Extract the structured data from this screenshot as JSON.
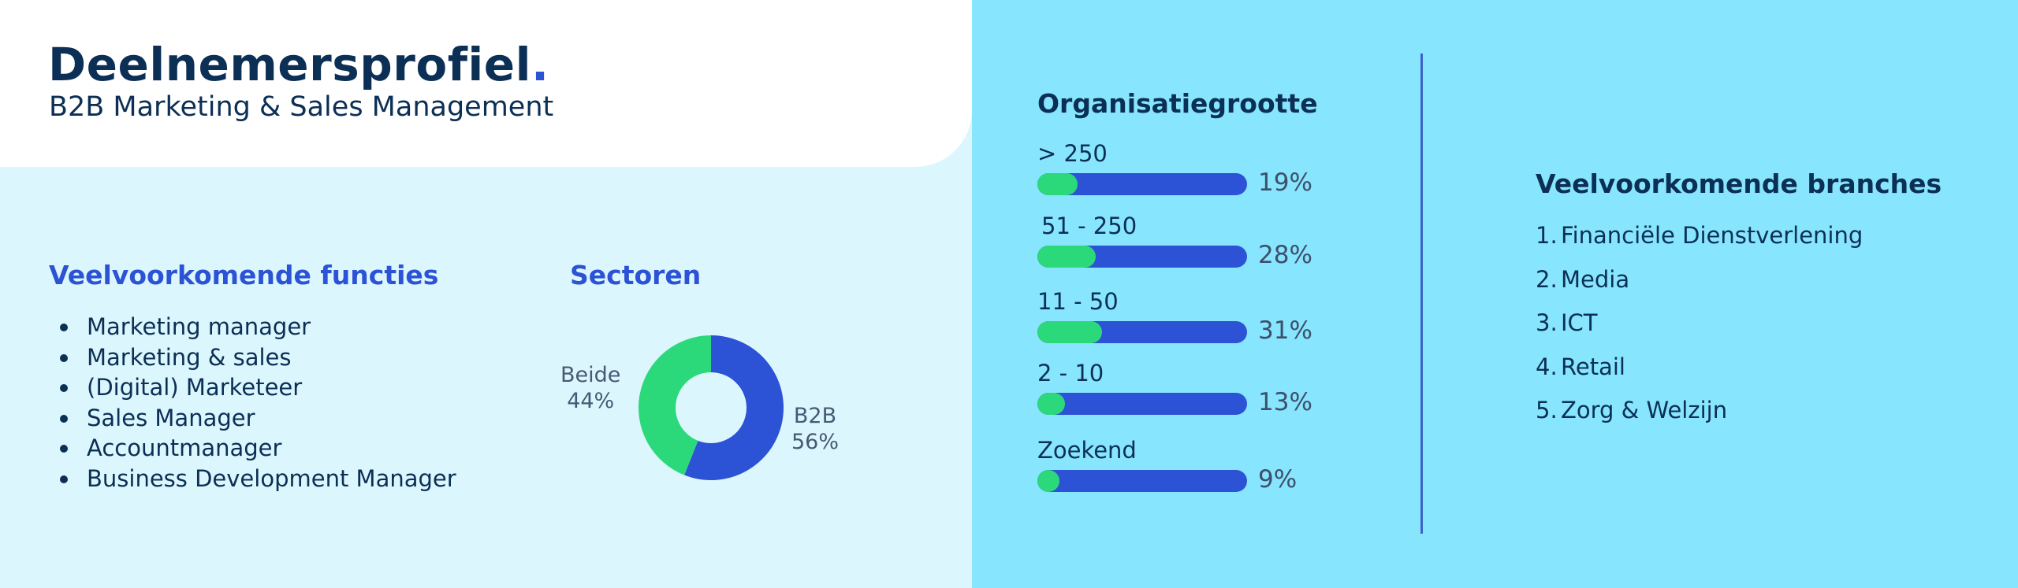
{
  "header": {
    "title": "Deelnemersprofiel",
    "title_dot": ".",
    "subtitle": "B2B Marketing & Sales Management"
  },
  "functions": {
    "title": "Veelvoorkomende functies",
    "items": [
      "Marketing manager",
      "Marketing & sales",
      "(Digital) Marketeer",
      "Sales Manager",
      "Accountmanager",
      "Business Development Manager"
    ]
  },
  "branches": {
    "title": "Veelvoorkomende branches",
    "items": [
      {
        "num": "1.",
        "label": "Financiële Dienstverlening"
      },
      {
        "num": "2.",
        "label": "Media"
      },
      {
        "num": "3.",
        "label": "ICT"
      },
      {
        "num": "4.",
        "label": "Retail"
      },
      {
        "num": "5.",
        "label": "Zorg & Welzijn"
      }
    ]
  },
  "colors": {
    "accent_blue": "#2c52d6",
    "accent_green": "#2cd97a",
    "navy": "#0b2f55",
    "light_panel": "#dcf6fd",
    "cyan_panel": "#87e5fd"
  },
  "chart_data": [
    {
      "type": "pie",
      "title": "Sectoren",
      "donut": true,
      "slices": [
        {
          "label": "B2B",
          "value": 56,
          "value_label": "56%",
          "color": "#2c52d6"
        },
        {
          "label": "Beide",
          "value": 44,
          "value_label": "44%",
          "color": "#2cd97a"
        }
      ]
    },
    {
      "type": "bar",
      "orientation": "horizontal",
      "title": "Organisatiegrootte",
      "categories": [
        "> 250",
        "51 - 250",
        "11 - 50",
        "2 - 10",
        "Zoekend"
      ],
      "values": [
        19,
        28,
        31,
        13,
        9
      ],
      "value_labels": [
        "19%",
        "28%",
        "31%",
        "13%",
        "9%"
      ],
      "xlim": [
        0,
        100
      ],
      "fill_color": "#2cd97a",
      "track_color": "#2c52d6"
    }
  ]
}
